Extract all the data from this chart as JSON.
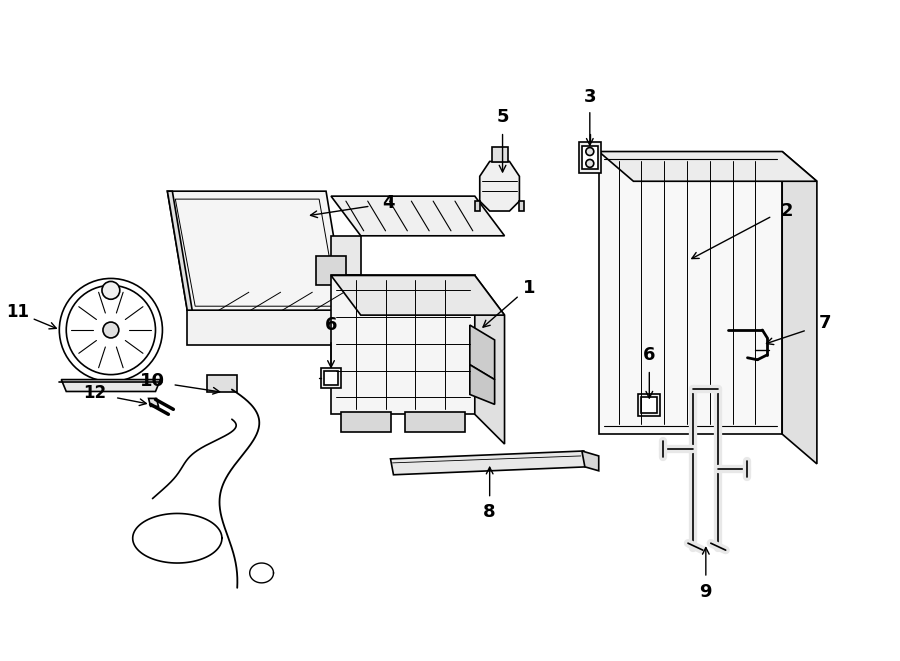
{
  "bg_color": "#ffffff",
  "line_color": "#000000",
  "line_width": 1.2,
  "fig_width": 9.0,
  "fig_height": 6.61,
  "dpi": 100,
  "font_size": 13
}
